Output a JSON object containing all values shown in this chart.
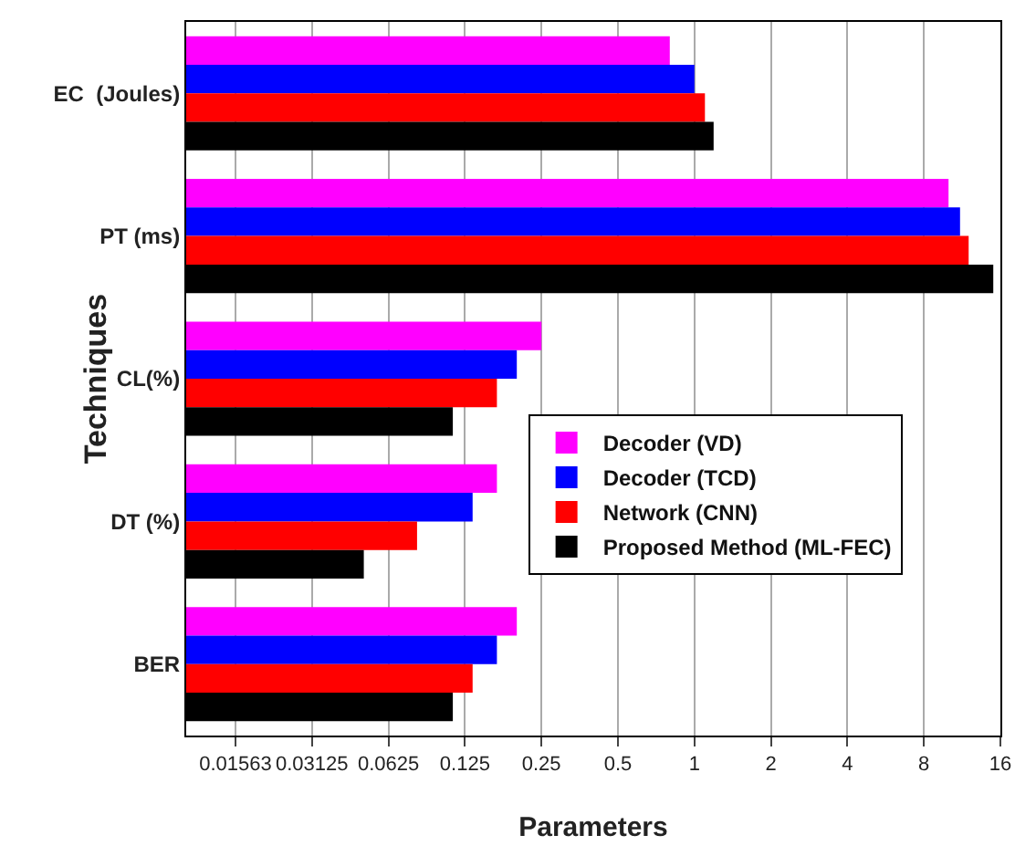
{
  "chart_data": {
    "type": "bar",
    "orientation": "horizontal",
    "xlabel": "Parameters",
    "ylabel": "Techniques",
    "categories": [
      "EC  (Joules)",
      "PT (ms)",
      "CL(%)",
      "DT (%)",
      "BER"
    ],
    "series": [
      {
        "name": "Decoder (VD)",
        "color": "#ff00ff",
        "values": [
          0.8,
          10,
          0.25,
          0.167,
          0.2
        ]
      },
      {
        "name": "Decoder (TCD)",
        "color": "#0000ff",
        "values": [
          1.0,
          11.1,
          0.2,
          0.134,
          0.167
        ]
      },
      {
        "name": "Network (CNN)",
        "color": "#ff0000",
        "values": [
          1.1,
          12,
          0.167,
          0.081,
          0.134
        ]
      },
      {
        "name": "Proposed Method (ML-FEC)",
        "color": "#000000",
        "values": [
          1.19,
          15,
          0.112,
          0.05,
          0.112
        ]
      }
    ],
    "log": "x",
    "xlim": [
      0.01,
      16
    ],
    "xticks": [
      {
        "value": 0.015625,
        "label": "0.01563"
      },
      0.03125,
      0.0625,
      0.125,
      0.25,
      0.5,
      1,
      2,
      4,
      8,
      16
    ],
    "grid": "x",
    "legend": "right"
  }
}
